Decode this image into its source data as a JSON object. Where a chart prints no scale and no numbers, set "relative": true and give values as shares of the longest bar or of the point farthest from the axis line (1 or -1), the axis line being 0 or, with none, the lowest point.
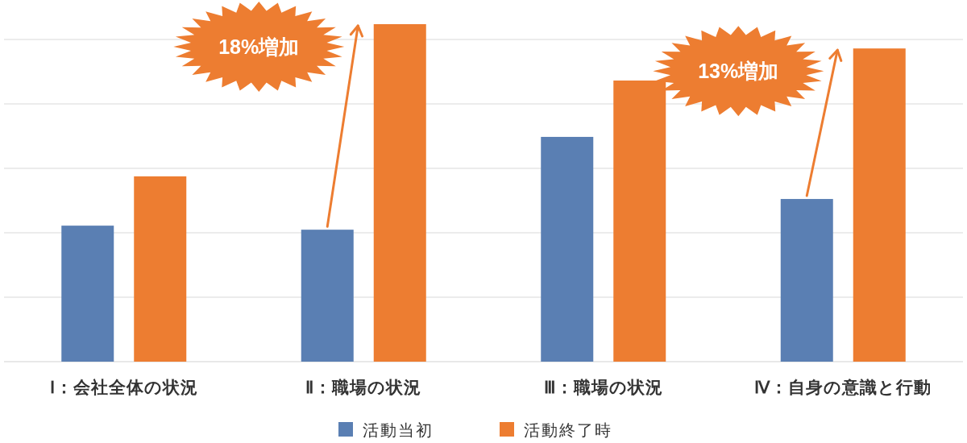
{
  "chart_data": {
    "type": "bar",
    "relative": true,
    "grid": true,
    "legend": "bottom",
    "categories": [
      "Ⅰ：会社全体の状況",
      "Ⅱ：職場の状況",
      "Ⅲ：職場の状況",
      "Ⅳ：自身の意識と行動"
    ],
    "series": [
      {
        "name": "活動当初",
        "color": "#5a7fb3",
        "values": [
          0.403,
          0.391,
          0.666,
          0.482
        ]
      },
      {
        "name": "活動終了時",
        "color": "#ed7d31",
        "values": [
          0.549,
          1,
          0.833,
          0.928
        ]
      }
    ],
    "annotations": [
      "18%増加",
      "13%増加"
    ]
  }
}
